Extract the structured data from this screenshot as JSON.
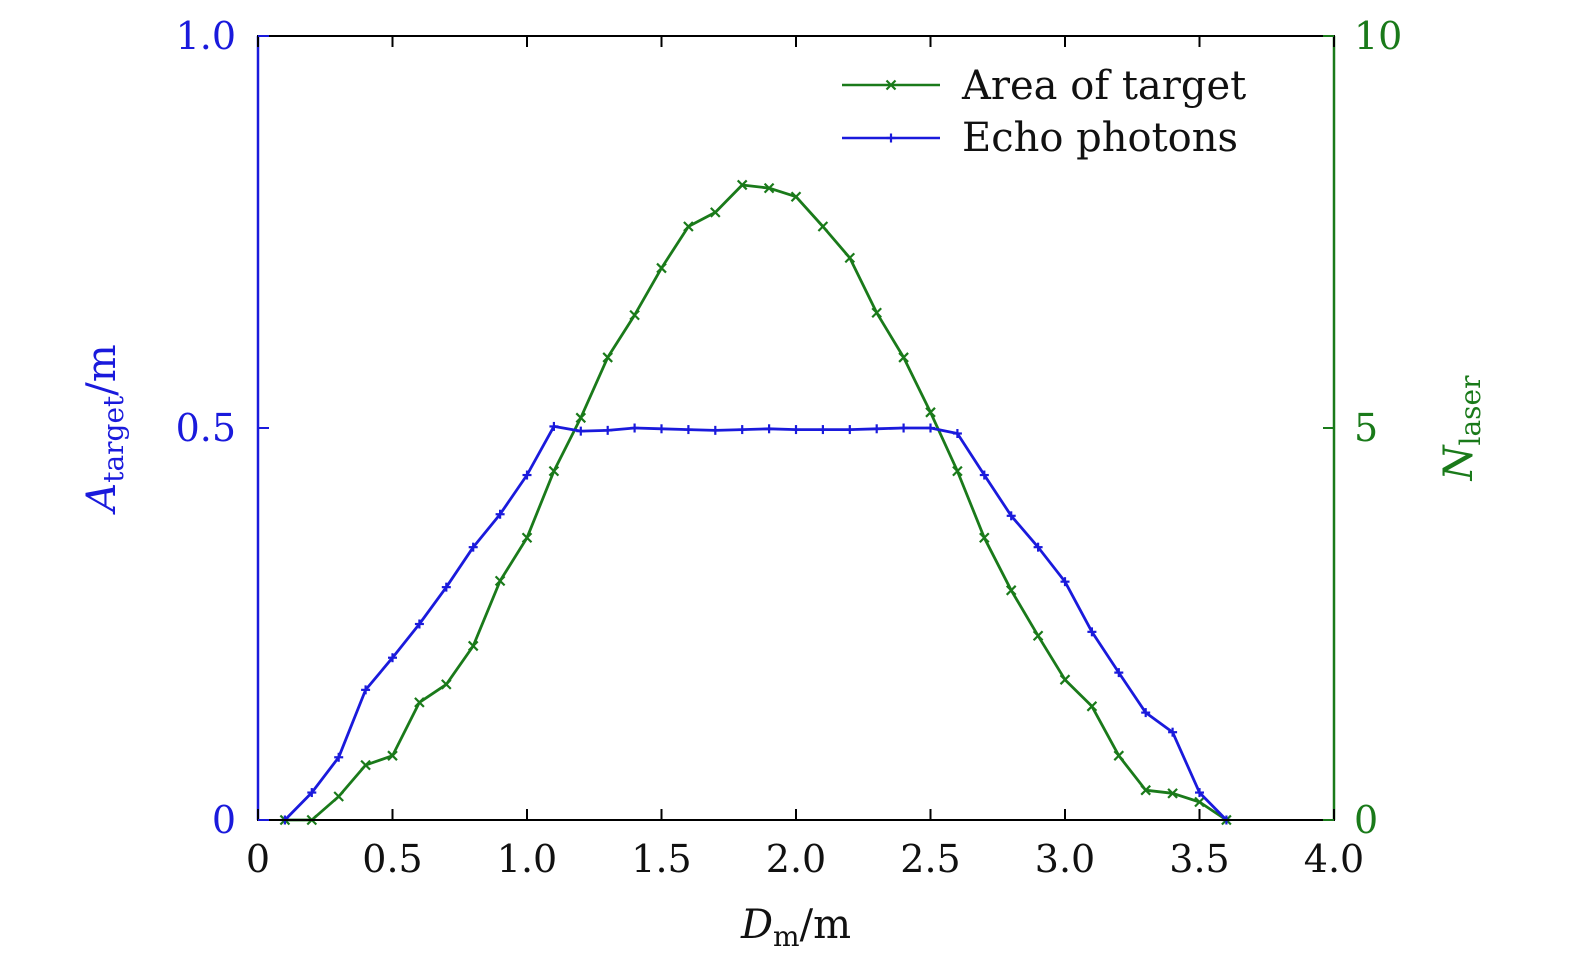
{
  "chart_data": {
    "type": "line",
    "xlabel": {
      "main": "D",
      "sub": "m",
      "unit": "/m"
    },
    "ylabel_left": {
      "main": "A",
      "sub": "target",
      "unit": "/m"
    },
    "ylabel_right": {
      "main": "N",
      "sub": "laser"
    },
    "xlim": [
      0,
      4.0
    ],
    "ylim_left": [
      0,
      1.0
    ],
    "ylim_right": [
      0,
      10
    ],
    "x_ticks": [
      0,
      0.5,
      1.0,
      1.5,
      2.0,
      2.5,
      3.0,
      3.5,
      4.0
    ],
    "x_tick_labels": [
      "0",
      "0.5",
      "1.0",
      "1.5",
      "2.0",
      "2.5",
      "3.0",
      "3.5",
      "4.0"
    ],
    "y_left_ticks": [
      0,
      0.5,
      1.0
    ],
    "y_left_tick_labels": [
      "0",
      "0.5",
      "1.0"
    ],
    "y_right_ticks": [
      0,
      5,
      10
    ],
    "y_right_tick_labels": [
      "0",
      "5",
      "10"
    ],
    "legend_position": "top-right",
    "grid": false,
    "colors": {
      "left_axis": "#1a1adc",
      "right_axis": "#1a7a1a",
      "frame": "#000000"
    },
    "series": [
      {
        "name": "Area of target",
        "axis": "right",
        "marker": "x",
        "color": "#1a7a1a",
        "x": [
          0.1,
          0.2,
          0.3,
          0.4,
          0.5,
          0.6,
          0.7,
          0.8,
          0.9,
          1.0,
          1.1,
          1.2,
          1.3,
          1.4,
          1.5,
          1.6,
          1.7,
          1.8,
          1.9,
          2.0,
          2.1,
          2.2,
          2.3,
          2.4,
          2.5,
          2.6,
          2.7,
          2.8,
          2.9,
          3.0,
          3.1,
          3.2,
          3.3,
          3.4,
          3.5,
          3.6
        ],
        "y": [
          0,
          0,
          0.3,
          0.7,
          0.82,
          1.5,
          1.73,
          2.22,
          3.05,
          3.6,
          4.45,
          5.13,
          5.9,
          6.44,
          7.04,
          7.57,
          7.75,
          8.1,
          8.06,
          7.95,
          7.57,
          7.17,
          6.47,
          5.9,
          5.2,
          4.45,
          3.6,
          2.93,
          2.35,
          1.79,
          1.45,
          0.82,
          0.38,
          0.34,
          0.23,
          0
        ]
      },
      {
        "name": "Echo photons",
        "axis": "left",
        "marker": "+",
        "color": "#1a1adc",
        "x": [
          0.1,
          0.2,
          0.3,
          0.4,
          0.5,
          0.6,
          0.7,
          0.8,
          0.9,
          1.0,
          1.1,
          1.2,
          1.3,
          1.4,
          1.5,
          1.6,
          1.7,
          1.8,
          1.9,
          2.0,
          2.1,
          2.2,
          2.3,
          2.4,
          2.5,
          2.6,
          2.7,
          2.8,
          2.9,
          3.0,
          3.1,
          3.2,
          3.3,
          3.4,
          3.5,
          3.6
        ],
        "y": [
          0,
          0.035,
          0.08,
          0.166,
          0.207,
          0.25,
          0.297,
          0.348,
          0.39,
          0.44,
          0.502,
          0.496,
          0.497,
          0.5,
          0.499,
          0.498,
          0.497,
          0.498,
          0.499,
          0.498,
          0.498,
          0.498,
          0.499,
          0.5,
          0.5,
          0.493,
          0.44,
          0.388,
          0.348,
          0.304,
          0.24,
          0.188,
          0.137,
          0.112,
          0.035,
          0
        ]
      }
    ]
  }
}
